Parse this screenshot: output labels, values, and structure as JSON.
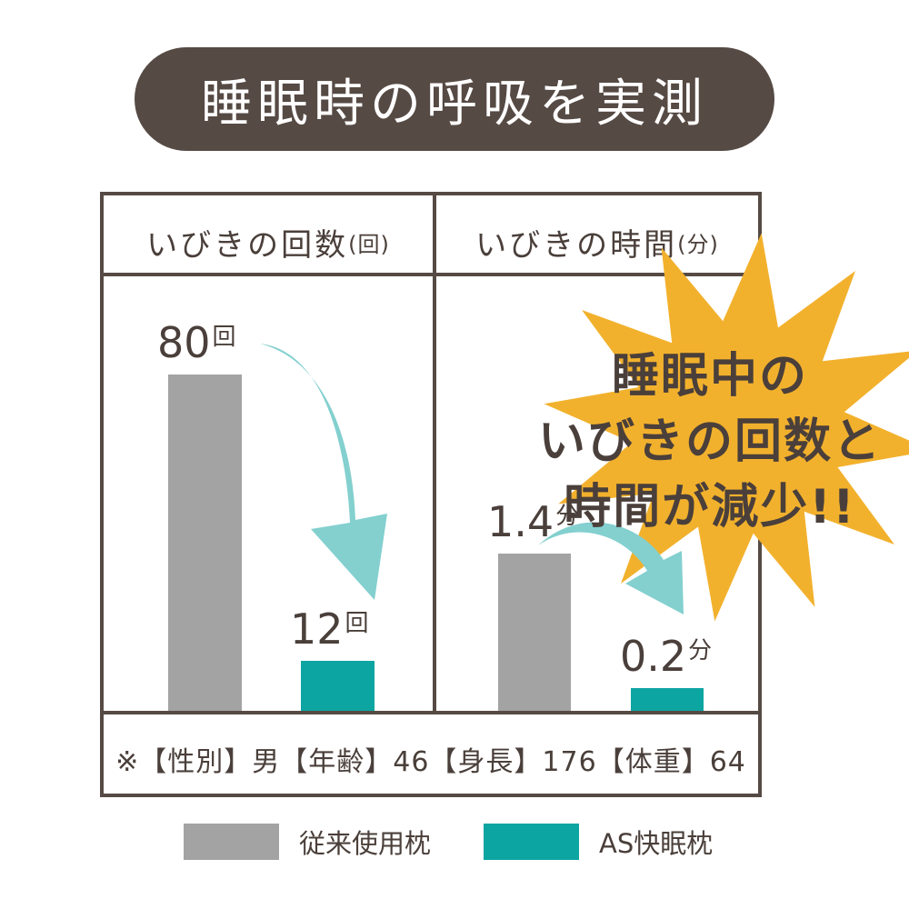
{
  "title": "睡眠時の呼吸を実測",
  "colors": {
    "conventional": "#a3a3a3",
    "as_pillow": "#0da5a1",
    "arrow": "#83d0cf",
    "burst": "#f2b12d",
    "frame": "#564a44"
  },
  "chart_data": [
    {
      "type": "bar",
      "title": "いびきの回数",
      "unit_label": "(回)",
      "categories": [
        "従来使用枕",
        "AS快眠枕"
      ],
      "values": [
        80,
        12
      ],
      "value_labels": [
        "80",
        "12"
      ],
      "value_unit": "回",
      "ylim": [
        0,
        80
      ]
    },
    {
      "type": "bar",
      "title": "いびきの時間",
      "unit_label": "(分)",
      "categories": [
        "従来使用枕",
        "AS快眠枕"
      ],
      "values": [
        1.4,
        0.2
      ],
      "value_labels": [
        "1.4",
        "0.2"
      ],
      "value_unit": "分",
      "ylim": [
        0,
        3.0
      ]
    }
  ],
  "callout": {
    "line1": "睡眠中の",
    "line2": "いびきの回数と",
    "line3": "時間が減少!!"
  },
  "footnote": "※【性別】男【年齢】46【身長】176【体重】64",
  "legend": [
    {
      "label": "従来使用枕"
    },
    {
      "label": "AS快眠枕"
    }
  ]
}
